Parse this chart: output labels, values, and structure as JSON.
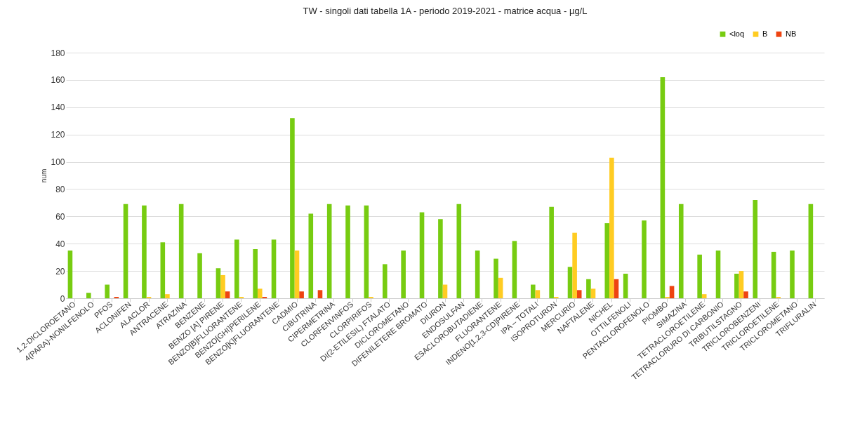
{
  "chart_data": {
    "type": "bar",
    "title": "TW  -  singoli dati tabella 1A  - periodo 2019-2021 - matrice   acqua  -  µg/L",
    "ylabel": "num",
    "categories": [
      "1,2-DICLOROETANO",
      "4(PARA)-NONILFENOLO",
      "PFOS",
      "ACLONIFEN",
      "ALACLOR",
      "ANTRACENE",
      "ATRAZINA",
      "BENZENE",
      "BENZO [A] PIRENE",
      "BENZO[B]FLUORANTENE",
      "BENZO[GHI]PERILENE",
      "BENZO[K]FLUORANTENE",
      "CADMIO",
      "CIBUTRINA",
      "CIPERMETRINA",
      "CLORFENVINFOS",
      "CLORPIRIFOS",
      "DI(2-ETILESIL) FTALATO",
      "DICLOROMETANO",
      "DIFENILETERE BROMATO",
      "DIURON",
      "ENDOSULFAN",
      "ESACLOROBUTADIENE",
      "FLUORANTENE",
      "INDENO[1,2,3-CD]PIRENE",
      "IPA – TOTALI",
      "ISOPROTURON",
      "MERCURIO",
      "NAFTALENE",
      "NICHEL",
      "OTTILFENOLI",
      "PENTACLOROFENOLO",
      "PIOMBO",
      "SIMAZINA",
      "TETRACLOROETILENE",
      "TETRACLORURO DI CARBONIO",
      "TRIBUTILSTAGNO",
      "TRICLOROBENZENI",
      "TRICLOROETILENE",
      "TRICLOROMETANO",
      "TRIFLURALIN"
    ],
    "series": [
      {
        "name": "<loq",
        "color": "#77cc11",
        "values": [
          35,
          4,
          10,
          69,
          68,
          41,
          69,
          33,
          22,
          43,
          36,
          43,
          132,
          62,
          69,
          68,
          68,
          25,
          35,
          63,
          58,
          69,
          35,
          29,
          42,
          10,
          67,
          23,
          14,
          55,
          18,
          57,
          162,
          69,
          32,
          35,
          18,
          72,
          34,
          35,
          69
        ]
      },
      {
        "name": "B",
        "color": "#ffcc22",
        "values": [
          null,
          null,
          null,
          null,
          1,
          3,
          null,
          null,
          17,
          1,
          7,
          null,
          35,
          null,
          null,
          null,
          1,
          null,
          null,
          null,
          10,
          null,
          null,
          15,
          null,
          6,
          1,
          48,
          7,
          103,
          null,
          null,
          1,
          null,
          3,
          null,
          20,
          null,
          1,
          null,
          null
        ]
      },
      {
        "name": "NB",
        "color": "#ee4411",
        "values": [
          null,
          null,
          1,
          null,
          null,
          null,
          null,
          null,
          5,
          null,
          1,
          null,
          5,
          6,
          null,
          null,
          null,
          null,
          null,
          null,
          null,
          null,
          null,
          null,
          null,
          null,
          null,
          6,
          null,
          14,
          null,
          null,
          9,
          null,
          null,
          null,
          5,
          null,
          null,
          null,
          null
        ]
      }
    ],
    "ylim": [
      0,
      180
    ],
    "yticks": [
      0,
      20,
      40,
      60,
      80,
      100,
      120,
      140,
      160,
      180
    ],
    "grid": "y",
    "legend": "top right"
  }
}
